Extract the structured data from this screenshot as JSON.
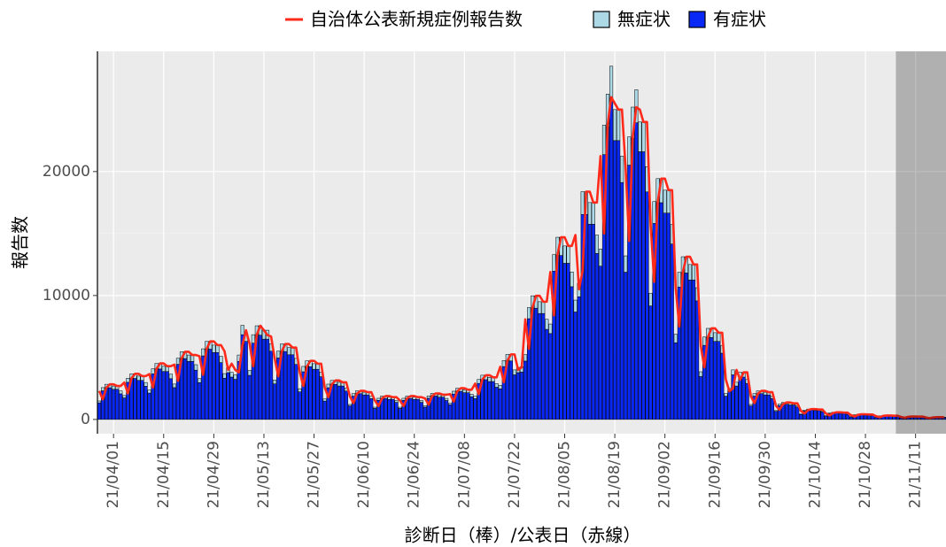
{
  "chart_data": {
    "type": "bar",
    "stacked": true,
    "x": [
      "21/03/28",
      "21/03/29",
      "21/03/30",
      "21/03/31",
      "21/04/01",
      "21/04/02",
      "21/04/03",
      "21/04/04",
      "21/04/05",
      "21/04/06",
      "21/04/07",
      "21/04/08",
      "21/04/09",
      "21/04/10",
      "21/04/11",
      "21/04/12",
      "21/04/13",
      "21/04/14",
      "21/04/15",
      "21/04/16",
      "21/04/17",
      "21/04/18",
      "21/04/19",
      "21/04/20",
      "21/04/21",
      "21/04/22",
      "21/04/23",
      "21/04/24",
      "21/04/25",
      "21/04/26",
      "21/04/27",
      "21/04/28",
      "21/04/29",
      "21/04/30",
      "21/05/01",
      "21/05/02",
      "21/05/03",
      "21/05/04",
      "21/05/05",
      "21/05/06",
      "21/05/07",
      "21/05/08",
      "21/05/09",
      "21/05/10",
      "21/05/11",
      "21/05/12",
      "21/05/13",
      "21/05/14",
      "21/05/15",
      "21/05/16",
      "21/05/17",
      "21/05/18",
      "21/05/19",
      "21/05/20",
      "21/05/21",
      "21/05/22",
      "21/05/23",
      "21/05/24",
      "21/05/25",
      "21/05/26",
      "21/05/27",
      "21/05/28",
      "21/05/29",
      "21/05/30",
      "21/05/31",
      "21/06/01",
      "21/06/02",
      "21/06/03",
      "21/06/04",
      "21/06/05",
      "21/06/06",
      "21/06/07",
      "21/06/08",
      "21/06/09",
      "21/06/10",
      "21/06/11",
      "21/06/12",
      "21/06/13",
      "21/06/14",
      "21/06/15",
      "21/06/16",
      "21/06/17",
      "21/06/18",
      "21/06/19",
      "21/06/20",
      "21/06/21",
      "21/06/22",
      "21/06/23",
      "21/06/24",
      "21/06/25",
      "21/06/26",
      "21/06/27",
      "21/06/28",
      "21/06/29",
      "21/06/30",
      "21/07/01",
      "21/07/02",
      "21/07/03",
      "21/07/04",
      "21/07/05",
      "21/07/06",
      "21/07/07",
      "21/07/08",
      "21/07/09",
      "21/07/10",
      "21/07/11",
      "21/07/12",
      "21/07/13",
      "21/07/14",
      "21/07/15",
      "21/07/16",
      "21/07/17",
      "21/07/18",
      "21/07/19",
      "21/07/20",
      "21/07/21",
      "21/07/22",
      "21/07/23",
      "21/07/24",
      "21/07/25",
      "21/07/26",
      "21/07/27",
      "21/07/28",
      "21/07/29",
      "21/07/30",
      "21/07/31",
      "21/08/01",
      "21/08/02",
      "21/08/03",
      "21/08/04",
      "21/08/05",
      "21/08/06",
      "21/08/07",
      "21/08/08",
      "21/08/09",
      "21/08/10",
      "21/08/11",
      "21/08/12",
      "21/08/13",
      "21/08/14",
      "21/08/15",
      "21/08/16",
      "21/08/17",
      "21/08/18",
      "21/08/19",
      "21/08/20",
      "21/08/21",
      "21/08/22",
      "21/08/23",
      "21/08/24",
      "21/08/25",
      "21/08/26",
      "21/08/27",
      "21/08/28",
      "21/08/29",
      "21/08/30",
      "21/08/31",
      "21/09/01",
      "21/09/02",
      "21/09/03",
      "21/09/04",
      "21/09/05",
      "21/09/06",
      "21/09/07",
      "21/09/08",
      "21/09/09",
      "21/09/10",
      "21/09/11",
      "21/09/12",
      "21/09/13",
      "21/09/14",
      "21/09/15",
      "21/09/16",
      "21/09/17",
      "21/09/18",
      "21/09/19",
      "21/09/20",
      "21/09/21",
      "21/09/22",
      "21/09/23",
      "21/09/24",
      "21/09/25",
      "21/09/26",
      "21/09/27",
      "21/09/28",
      "21/09/29",
      "21/09/30",
      "21/10/01",
      "21/10/02",
      "21/10/03",
      "21/10/04",
      "21/10/05",
      "21/10/06",
      "21/10/07",
      "21/10/08",
      "21/10/09",
      "21/10/10",
      "21/10/11",
      "21/10/12",
      "21/10/13",
      "21/10/14",
      "21/10/15",
      "21/10/16",
      "21/10/17",
      "21/10/18",
      "21/10/19",
      "21/10/20",
      "21/10/21",
      "21/10/22",
      "21/10/23",
      "21/10/24",
      "21/10/25",
      "21/10/26",
      "21/10/27",
      "21/10/28",
      "21/10/29",
      "21/10/30",
      "21/10/31",
      "21/11/01",
      "21/11/02",
      "21/11/03",
      "21/11/04",
      "21/11/05",
      "21/11/06",
      "21/11/07",
      "21/11/08",
      "21/11/09",
      "21/11/10",
      "21/11/11",
      "21/11/12",
      "21/11/13",
      "21/11/14",
      "21/11/15",
      "21/11/16",
      "21/11/17",
      "21/11/18",
      "21/11/19"
    ],
    "series": [
      {
        "name": "有症状",
        "color": "#0a28f5",
        "values": [
          1340,
          2310,
          2560,
          2560,
          2430,
          2430,
          2070,
          1740,
          3000,
          3310,
          3310,
          3150,
          3150,
          2680,
          2130,
          3680,
          4070,
          4070,
          3870,
          3870,
          3290,
          2570,
          4450,
          4910,
          4910,
          4680,
          4680,
          3980,
          2970,
          5130,
          5670,
          5670,
          5400,
          5400,
          4590,
          3330,
          3780,
          3420,
          3240,
          4680,
          6840,
          6300,
          3560,
          6160,
          6800,
          6800,
          6480,
          6480,
          5510,
          2870,
          4960,
          5480,
          5480,
          5220,
          5220,
          4440,
          2230,
          3850,
          4260,
          4260,
          4050,
          4050,
          3450,
          1480,
          2560,
          2830,
          2830,
          2700,
          2700,
          2290,
          1090,
          1880,
          2080,
          2080,
          1980,
          1980,
          1680,
          890,
          1540,
          1700,
          1700,
          1620,
          1620,
          1380,
          890,
          1540,
          1700,
          1700,
          1620,
          1620,
          1380,
          990,
          1710,
          1890,
          1890,
          1800,
          1800,
          1530,
          1190,
          2050,
          2270,
          2270,
          2160,
          2160,
          1840,
          1680,
          2910,
          3210,
          3210,
          3060,
          3060,
          2600,
          2470,
          4270,
          4720,
          4720,
          3600,
          3780,
          3820,
          4710,
          8130,
          8980,
          8980,
          8550,
          8550,
          7270,
          6930,
          11970,
          13230,
          13230,
          12600,
          12600,
          10710,
          8670,
          9900,
          16540,
          16540,
          15750,
          15750,
          13390,
          12370,
          21370,
          23620,
          25650,
          22500,
          22500,
          19120,
          11880,
          20520,
          22680,
          23940,
          21600,
          21600,
          18360,
          9160,
          15820,
          17490,
          17490,
          16650,
          16650,
          14160,
          6190,
          10690,
          11820,
          11820,
          11250,
          11250,
          9570,
          3460,
          5980,
          6610,
          6610,
          6300,
          6300,
          5350,
          1880,
          2250,
          3600,
          2700,
          3420,
          3420,
          2910,
          1090,
          1880,
          2080,
          2080,
          1980,
          1980,
          1680,
          650,
          1120,
          1230,
          1230,
          1170,
          1170,
          1000,
          400,
          680,
          760,
          760,
          720,
          720,
          610,
          270,
          470,
          520,
          520,
          490,
          490,
          420,
          200,
          340,
          380,
          380,
          360,
          360,
          310,
          150,
          260,
          290,
          290,
          270,
          270,
          230,
          120,
          200,
          220,
          220,
          210,
          210,
          180,
          90,
          150,
          170,
          170,
          160,
          160
        ]
      },
      {
        "name": "無症状",
        "color": "#add8e6",
        "values": [
          150,
          260,
          280,
          280,
          270,
          270,
          230,
          190,
          330,
          370,
          370,
          350,
          350,
          300,
          240,
          410,
          450,
          450,
          430,
          430,
          370,
          290,
          490,
          550,
          550,
          520,
          520,
          440,
          330,
          570,
          630,
          630,
          600,
          600,
          510,
          370,
          420,
          380,
          360,
          520,
          760,
          700,
          400,
          680,
          760,
          760,
          720,
          720,
          610,
          320,
          550,
          610,
          610,
          580,
          580,
          490,
          250,
          430,
          470,
          470,
          450,
          450,
          380,
          170,
          290,
          320,
          320,
          300,
          300,
          260,
          120,
          210,
          230,
          230,
          220,
          220,
          190,
          100,
          170,
          190,
          190,
          180,
          180,
          150,
          100,
          170,
          190,
          190,
          180,
          180,
          150,
          110,
          190,
          210,
          210,
          200,
          200,
          170,
          130,
          230,
          250,
          250,
          240,
          240,
          200,
          190,
          320,
          360,
          360,
          340,
          340,
          290,
          280,
          480,
          530,
          530,
          400,
          420,
          430,
          520,
          900,
          1000,
          1000,
          950,
          950,
          810,
          770,
          1330,
          1470,
          1470,
          1400,
          1400,
          1190,
          960,
          1100,
          1840,
          1840,
          1750,
          1750,
          1490,
          1380,
          2380,
          2630,
          2850,
          2500,
          2500,
          2130,
          1320,
          2280,
          2520,
          2660,
          2400,
          2400,
          2040,
          1020,
          1760,
          1940,
          1940,
          1850,
          1850,
          1570,
          690,
          1190,
          1310,
          1310,
          1250,
          1250,
          1060,
          390,
          670,
          740,
          740,
          700,
          700,
          600,
          210,
          250,
          400,
          300,
          380,
          380,
          320,
          120,
          210,
          230,
          230,
          220,
          220,
          190,
          70,
          120,
          140,
          140,
          130,
          130,
          110,
          40,
          80,
          80,
          80,
          80,
          80,
          70,
          30,
          50,
          60,
          60,
          60,
          60,
          50,
          20,
          40,
          40,
          40,
          40,
          40,
          30,
          20,
          30,
          30,
          30,
          30,
          30,
          30,
          10,
          20,
          20,
          20,
          20,
          20,
          20,
          10,
          20,
          20,
          20,
          20,
          20
        ]
      }
    ],
    "line": {
      "name": "自治体公表新規症例報告数",
      "color": "#ff2a1a",
      "values": [
        2300,
        1620,
        2570,
        2840,
        2840,
        2700,
        2700,
        2980,
        2100,
        3330,
        3680,
        3680,
        3500,
        3500,
        3660,
        2580,
        4090,
        4520,
        4520,
        4300,
        4300,
        4420,
        3120,
        4940,
        5460,
        5460,
        5200,
        5200,
        5100,
        3600,
        5700,
        6300,
        6300,
        6000,
        6000,
        5500,
        4000,
        4500,
        4000,
        3800,
        6000,
        7200,
        6100,
        4300,
        6840,
        7560,
        7200,
        6800,
        6700,
        4930,
        3480,
        5510,
        6090,
        6090,
        5800,
        5800,
        3830,
        2700,
        4280,
        4730,
        4730,
        4500,
        4500,
        2550,
        1800,
        2850,
        3150,
        3150,
        3000,
        3000,
        1870,
        1320,
        2090,
        2310,
        2310,
        2200,
        2200,
        1530,
        1080,
        1710,
        1890,
        1890,
        1800,
        1800,
        1530,
        1080,
        1710,
        1890,
        1890,
        1800,
        1800,
        1700,
        1200,
        1900,
        2100,
        2100,
        2000,
        2000,
        2040,
        1440,
        2280,
        2520,
        2520,
        2400,
        2400,
        2890,
        2040,
        3230,
        3570,
        3570,
        3400,
        3400,
        4250,
        3000,
        4750,
        5250,
        5250,
        4000,
        4200,
        8080,
        5700,
        9030,
        9980,
        9980,
        9500,
        9500,
        11900,
        8400,
        13300,
        14700,
        14700,
        14000,
        14000,
        14880,
        10500,
        12000,
        18380,
        18380,
        17500,
        17500,
        21250,
        15000,
        23750,
        26000,
        25500,
        25000,
        25000,
        20400,
        14400,
        22800,
        25200,
        25000,
        24000,
        24000,
        15730,
        11100,
        17580,
        19430,
        19430,
        18500,
        18500,
        10630,
        7500,
        11880,
        13130,
        13130,
        12500,
        12500,
        5950,
        4200,
        6650,
        7350,
        7350,
        7000,
        7000,
        3230,
        2280,
        2500,
        4000,
        3200,
        3800,
        3800,
        1870,
        1320,
        2090,
        2310,
        2310,
        2200,
        2200,
        1110,
        780,
        1240,
        1370,
        1370,
        1300,
        1300,
        680,
        480,
        760,
        840,
        840,
        800,
        800,
        470,
        330,
        520,
        580,
        580,
        550,
        550,
        340,
        240,
        380,
        420,
        420,
        400,
        400,
        260,
        180,
        290,
        320,
        320,
        300,
        300,
        200,
        140,
        220,
        240,
        240,
        230,
        230,
        150,
        110,
        170,
        190,
        190,
        180
      ]
    },
    "ylim": [
      -1150,
      29700
    ],
    "yticks": [
      0,
      10000,
      20000
    ],
    "xticks": [
      "21/04/01",
      "21/04/15",
      "21/04/29",
      "21/05/13",
      "21/05/27",
      "21/06/10",
      "21/06/24",
      "21/07/08",
      "21/07/22",
      "21/08/05",
      "21/08/19",
      "21/09/02",
      "21/09/16",
      "21/09/30",
      "21/10/14",
      "21/10/28",
      "21/11/11"
    ],
    "xlabel": "診断日（棒）/公表日（赤線）",
    "ylabel": "報告数",
    "grid": true,
    "shaded_from": "21/11/06",
    "legend": "top"
  }
}
